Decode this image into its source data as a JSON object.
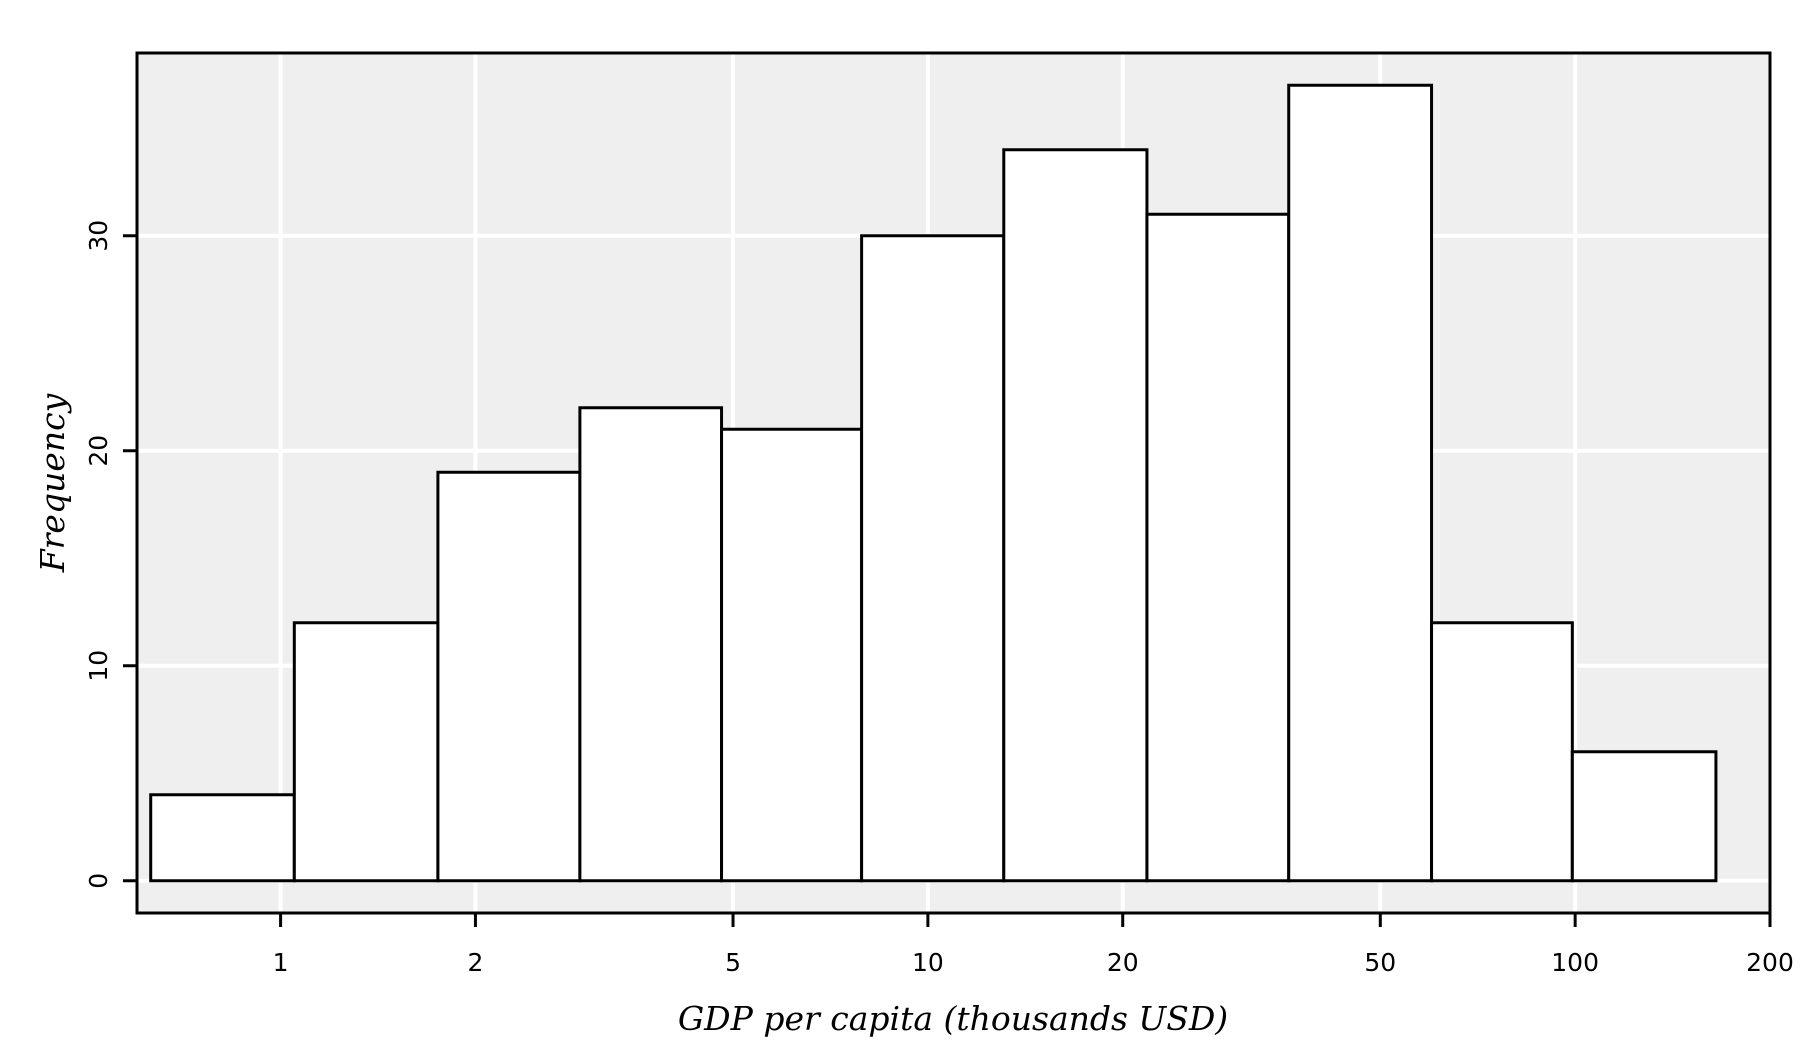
{
  "chart_data": {
    "type": "bar",
    "xlabel": "GDP per capita (thousands USD)",
    "ylabel": "Frequency",
    "x_scale": "log",
    "xlim": [
      0.6,
      200
    ],
    "ylim": [
      -1.5,
      38.5
    ],
    "x_ticks": [
      1,
      2,
      5,
      10,
      20,
      50,
      100,
      200
    ],
    "x_tick_labels": [
      "1",
      "2",
      "5",
      "10",
      "20",
      "50",
      "100",
      "200"
    ],
    "y_ticks": [
      0,
      10,
      20,
      30
    ],
    "y_tick_labels": [
      "0",
      "10",
      "20",
      "30"
    ],
    "bins": [
      {
        "x0": 0.63,
        "x1": 1.05,
        "count": 4
      },
      {
        "x0": 1.05,
        "x1": 1.75,
        "count": 12
      },
      {
        "x0": 1.75,
        "x1": 2.9,
        "count": 19
      },
      {
        "x0": 2.9,
        "x1": 4.8,
        "count": 22
      },
      {
        "x0": 4.8,
        "x1": 7.9,
        "count": 21
      },
      {
        "x0": 7.9,
        "x1": 13.1,
        "count": 30
      },
      {
        "x0": 13.1,
        "x1": 21.8,
        "count": 34
      },
      {
        "x0": 21.8,
        "x1": 36.1,
        "count": 31
      },
      {
        "x0": 36.1,
        "x1": 60,
        "count": 37
      },
      {
        "x0": 60,
        "x1": 99,
        "count": 12
      },
      {
        "x0": 99,
        "x1": 165,
        "count": 6
      }
    ],
    "grid": true,
    "colors": {
      "panel": "#efefef",
      "grid": "#ffffff",
      "bar_fill": "#ffffff",
      "bar_stroke": "#000000"
    }
  }
}
